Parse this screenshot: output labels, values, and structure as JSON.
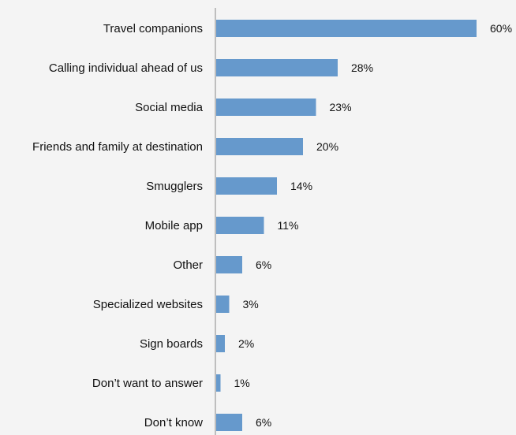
{
  "chart_data": {
    "type": "bar",
    "orientation": "horizontal",
    "categories": [
      "Travel companions",
      "Calling individual ahead of us",
      "Social media",
      "Friends and family at destination",
      "Smugglers",
      "Mobile app",
      "Other",
      "Specialized websites",
      "Sign boards",
      "Don’t want to answer",
      "Don’t know"
    ],
    "values": [
      60,
      28,
      23,
      20,
      14,
      11,
      6,
      3,
      2,
      1,
      6
    ],
    "value_labels": [
      "60%",
      "28%",
      "23%",
      "20%",
      "14%",
      "11%",
      "6%",
      "3%",
      "2%",
      "1%",
      "6%"
    ],
    "xlim": [
      0,
      60
    ],
    "grid": false,
    "legend": "none",
    "title": "",
    "xlabel": "",
    "ylabel": "",
    "colors": {
      "bar": "#6699cc",
      "axis": "#9a9a9a",
      "background": "#f4f4f4",
      "text": "#111111"
    }
  }
}
